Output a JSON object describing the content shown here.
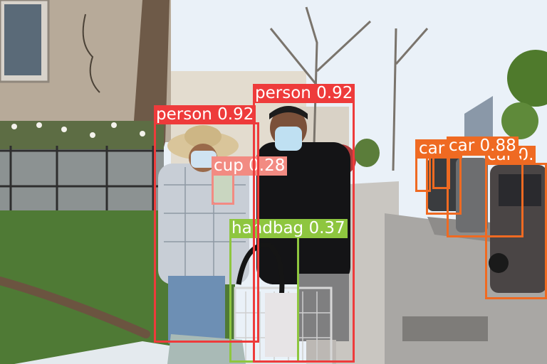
{
  "photo": {
    "description_icon": "street-scene-photo",
    "colors": {
      "sky": "#eaf1f8",
      "building": "#b7aa99",
      "lawn": "#4f7a35",
      "sidewalk": "#a9a7a4",
      "road": "#8e8c8a"
    }
  },
  "detections": [
    {
      "id": "person-2",
      "label": "person",
      "score": "0.92",
      "color": "#ee3b3b"
    },
    {
      "id": "person-1",
      "label": "person",
      "score": "0.92",
      "color": "#ee3b3b"
    },
    {
      "id": "cup-1",
      "label": "cup",
      "score": "0.28",
      "color": "#f28b82"
    },
    {
      "id": "handbag-1",
      "label": "handbag",
      "score": "0.37",
      "color": "#8ec63f"
    },
    {
      "id": "car-1",
      "label": "car",
      "score": "0.88",
      "color": "#ef6a22"
    },
    {
      "id": "car-2",
      "label": "car",
      "score": "0.",
      "color": "#ef6a22"
    },
    {
      "id": "car-3",
      "label": "car",
      "score": "0",
      "color": "#ef6a22"
    },
    {
      "id": "car-4",
      "label": "car",
      "score": "",
      "color": "#ef6a22"
    },
    {
      "id": "car-5",
      "label": "car",
      "score": "",
      "color": "#ef6a22"
    }
  ]
}
